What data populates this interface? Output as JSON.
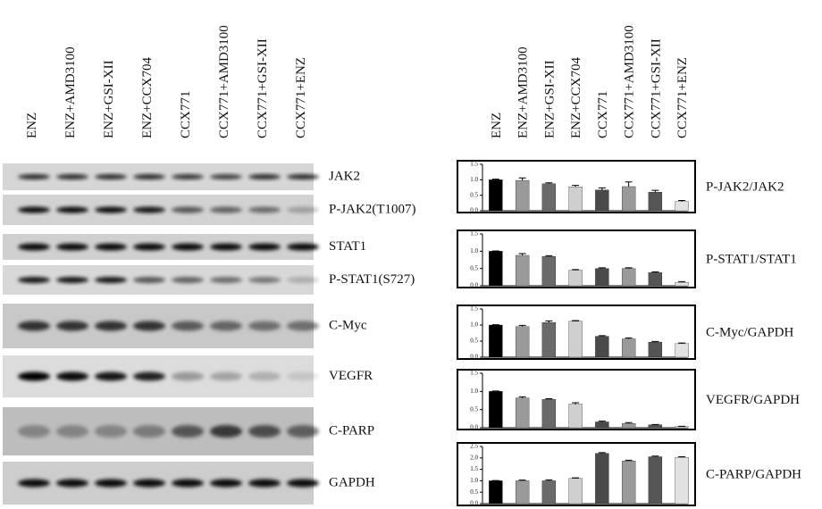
{
  "blot": {
    "lanes": [
      "ENZ",
      "ENZ+AMD3100",
      "ENZ+GSI-XII",
      "ENZ+CCX704",
      "CCX771",
      "CCX771+AMD3100",
      "CCX771+GSI-XII",
      "CCX771+ENZ"
    ],
    "proteins": [
      "JAK2",
      "P-JAK2(T1007)",
      "STAT1",
      "P-STAT1(S727)",
      "C-Myc",
      "VEGFR",
      "C-PARP",
      "GAPDH"
    ]
  },
  "bar_panel": {
    "categories": [
      "ENZ",
      "ENZ+AMD3100",
      "ENZ+GSI-XII",
      "ENZ+CCX704",
      "CCX771",
      "CCX771+AMD3100",
      "CCX771+GSI-XII",
      "CCX771+ENZ"
    ]
  },
  "chart_data": [
    {
      "type": "bar",
      "title": "P-JAK2/JAK2",
      "values": [
        1.0,
        0.98,
        0.87,
        0.77,
        0.67,
        0.78,
        0.6,
        0.3
      ],
      "errors": [
        0.02,
        0.08,
        0.03,
        0.05,
        0.07,
        0.15,
        0.06,
        0.03
      ],
      "colors": [
        "#000000",
        "#9a9a9a",
        "#6a6a6a",
        "#cfcfcf",
        "#4a4a4a",
        "#9a9a9a",
        "#555555",
        "#e2e2e2"
      ],
      "ylim": [
        0,
        1.5
      ],
      "yticks": [
        {
          "value": 0,
          "label": "0.0"
        },
        0.5,
        {
          "value": 1,
          "label": "1.0"
        },
        1.5
      ]
    },
    {
      "type": "bar",
      "title": "P-STAT1/STAT1",
      "values": [
        1.0,
        0.88,
        0.85,
        0.45,
        0.5,
        0.5,
        0.38,
        0.1
      ],
      "errors": [
        0.01,
        0.05,
        0.02,
        0.02,
        0.02,
        0.02,
        0.02,
        0.02
      ],
      "colors": [
        "#000000",
        "#9a9a9a",
        "#6a6a6a",
        "#cfcfcf",
        "#4a4a4a",
        "#9a9a9a",
        "#555555",
        "#e2e2e2"
      ],
      "ylim": [
        0,
        1.5
      ],
      "yticks": [
        {
          "value": 0,
          "label": "0.0"
        },
        0.5,
        {
          "value": 1,
          "label": "1.0"
        },
        1.5
      ]
    },
    {
      "type": "bar",
      "title": "C-Myc/GAPDH",
      "values": [
        1.0,
        0.95,
        1.08,
        1.12,
        0.65,
        0.57,
        0.47,
        0.42
      ],
      "errors": [
        0.01,
        0.04,
        0.05,
        0.02,
        0.02,
        0.03,
        0.02,
        0.02
      ],
      "colors": [
        "#000000",
        "#9a9a9a",
        "#6a6a6a",
        "#cfcfcf",
        "#4a4a4a",
        "#9a9a9a",
        "#555555",
        "#e2e2e2"
      ],
      "ylim": [
        0,
        1.5
      ],
      "yticks": [
        {
          "value": 0,
          "label": "0.0"
        },
        0.5,
        {
          "value": 1,
          "label": "1.0"
        },
        1.5
      ]
    },
    {
      "type": "bar",
      "title": "VEGFR/GAPDH",
      "values": [
        1.0,
        0.82,
        0.78,
        0.65,
        0.16,
        0.12,
        0.08,
        0.03
      ],
      "errors": [
        0.01,
        0.03,
        0.02,
        0.04,
        0.02,
        0.02,
        0.01,
        0.01
      ],
      "colors": [
        "#000000",
        "#9a9a9a",
        "#6a6a6a",
        "#cfcfcf",
        "#4a4a4a",
        "#9a9a9a",
        "#555555",
        "#e2e2e2"
      ],
      "ylim": [
        0,
        1.5
      ],
      "yticks": [
        {
          "value": 0,
          "label": "0.0"
        },
        0.5,
        {
          "value": 1,
          "label": "1.0"
        },
        1.5
      ]
    },
    {
      "type": "bar",
      "title": "C-PARP/GAPDH",
      "values": [
        1.0,
        1.0,
        1.0,
        1.1,
        2.2,
        1.87,
        2.05,
        2.02
      ],
      "errors": [
        0.01,
        0.03,
        0.04,
        0.03,
        0.03,
        0.03,
        0.03,
        0.03
      ],
      "colors": [
        "#000000",
        "#9a9a9a",
        "#6a6a6a",
        "#cfcfcf",
        "#4a4a4a",
        "#9a9a9a",
        "#555555",
        "#e2e2e2"
      ],
      "ylim": [
        0,
        2.5
      ],
      "yticks": [
        {
          "value": 0,
          "label": "0.0"
        },
        0.5,
        {
          "value": 1,
          "label": "1.0"
        },
        1.5,
        {
          "value": 2,
          "label": "2.0"
        },
        2.5
      ]
    }
  ]
}
